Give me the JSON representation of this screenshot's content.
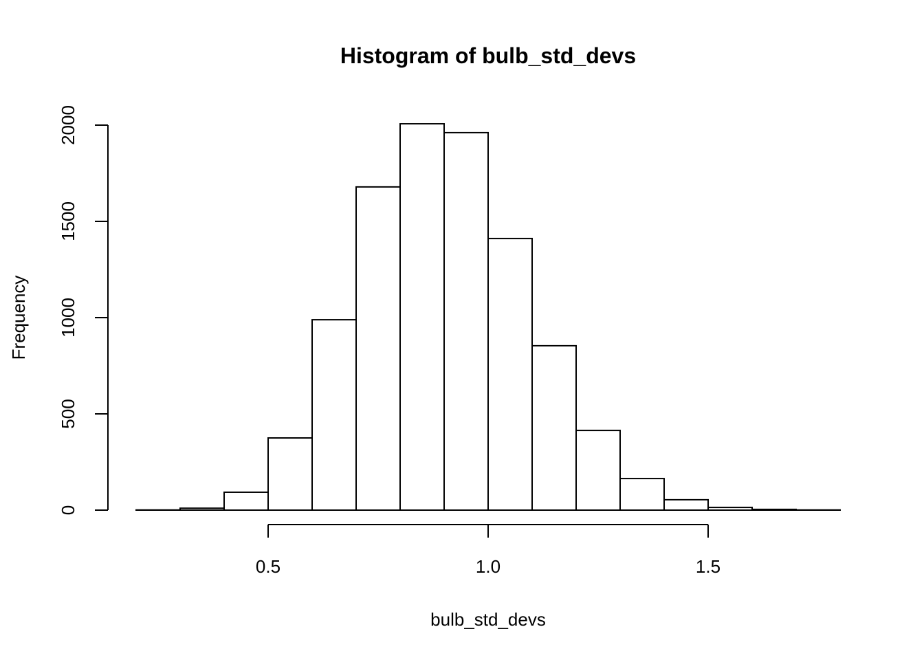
{
  "chart_data": {
    "type": "bar",
    "title": "Histogram of bulb_std_devs",
    "xlabel": "bulb_std_devs",
    "ylabel": "Frequency",
    "bin_edges": [
      0.2,
      0.3,
      0.4,
      0.5,
      0.6,
      0.7,
      0.8,
      0.9,
      1.0,
      1.1,
      1.2,
      1.3,
      1.4,
      1.5,
      1.6,
      1.7,
      1.8
    ],
    "values": [
      1,
      10,
      93,
      375,
      989,
      1679,
      2007,
      1961,
      1411,
      854,
      414,
      164,
      54,
      14,
      4,
      1
    ],
    "xlim": [
      0.2,
      1.8
    ],
    "ylim": [
      0,
      2000
    ],
    "x_ticks": [
      0.5,
      1.0,
      1.5
    ],
    "x_tick_labels": [
      "0.5",
      "1.0",
      "1.5"
    ],
    "y_ticks": [
      0,
      500,
      1000,
      1500,
      2000
    ],
    "y_tick_labels": [
      "0",
      "500",
      "1000",
      "1500",
      "2000"
    ],
    "grid": false,
    "bar_fill": "#ffffff",
    "bar_stroke": "#000000"
  }
}
